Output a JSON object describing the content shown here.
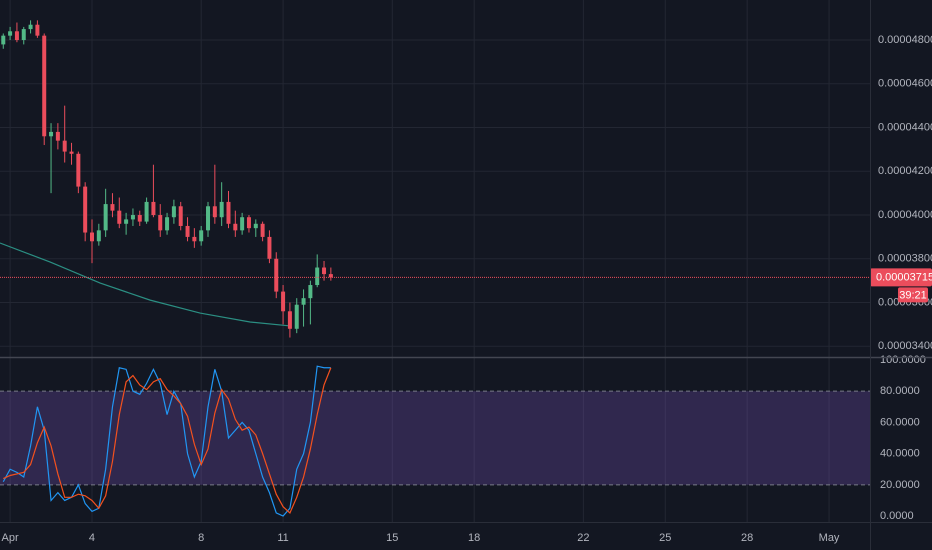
{
  "chart_data": [
    {
      "type": "candlestick",
      "x": [
        0.75,
        1,
        1.25,
        1.5,
        1.75,
        2,
        2.25,
        2.5,
        2.75,
        3,
        3.25,
        3.5,
        3.75,
        4,
        4.25,
        4.5,
        4.75,
        5,
        5.25,
        5.5,
        5.75,
        6,
        6.25,
        6.5,
        6.75,
        7,
        7.25,
        7.5,
        7.75,
        8,
        8.25,
        8.5,
        8.75,
        9,
        9.25,
        9.5,
        9.75,
        10,
        10.25,
        10.5,
        10.75,
        11,
        11.25,
        11.5,
        11.75,
        12,
        12.25,
        12.5,
        12.75
      ],
      "open": [
        4.78e-05,
        4.82e-05,
        4.84e-05,
        4.8e-05,
        4.85e-05,
        4.87e-05,
        4.82e-05,
        4.36e-05,
        4.38e-05,
        4.34e-05,
        4.29e-05,
        4.28e-05,
        4.13e-05,
        3.92e-05,
        3.88e-05,
        3.93e-05,
        4.05e-05,
        4.02e-05,
        3.96e-05,
        3.98e-05,
        4e-05,
        3.97e-05,
        4.06e-05,
        4e-05,
        3.93e-05,
        3.99e-05,
        4.04e-05,
        3.95e-05,
        3.9e-05,
        3.88e-05,
        3.93e-05,
        4.04e-05,
        3.99e-05,
        4.06e-05,
        3.96e-05,
        3.93e-05,
        3.99e-05,
        3.94e-05,
        3.96e-05,
        3.9e-05,
        3.8e-05,
        3.65e-05,
        3.56e-05,
        3.48e-05,
        3.59e-05,
        3.62e-05,
        3.68e-05,
        3.76e-05,
        3.73e-05
      ],
      "high": [
        4.83e-05,
        4.86e-05,
        4.88e-05,
        4.86e-05,
        4.89e-05,
        4.89e-05,
        4.83e-05,
        4.42e-05,
        4.42e-05,
        4.5e-05,
        4.33e-05,
        4.29e-05,
        4.15e-05,
        3.98e-05,
        3.96e-05,
        4.12e-05,
        4.1e-05,
        4.08e-05,
        4.01e-05,
        4.03e-05,
        4.02e-05,
        4.08e-05,
        4.23e-05,
        4.05e-05,
        4.01e-05,
        4.07e-05,
        4.06e-05,
        3.99e-05,
        3.94e-05,
        3.95e-05,
        4.06e-05,
        4.23e-05,
        4.15e-05,
        4.11e-05,
        4.02e-05,
        4.01e-05,
        4e-05,
        3.98e-05,
        3.97e-05,
        3.93e-05,
        3.83e-05,
        3.68e-05,
        3.6e-05,
        3.62e-05,
        3.66e-05,
        3.7e-05,
        3.82e-05,
        3.79e-05,
        3.76e-05
      ],
      "low": [
        4.76e-05,
        4.8e-05,
        4.79e-05,
        4.78e-05,
        4.83e-05,
        4.81e-05,
        4.32e-05,
        4.1e-05,
        4.3e-05,
        4.24e-05,
        4.23e-05,
        4.1e-05,
        3.88e-05,
        3.78e-05,
        3.86e-05,
        3.9e-05,
        3.99e-05,
        3.94e-05,
        3.91e-05,
        3.95e-05,
        3.95e-05,
        3.96e-05,
        3.99e-05,
        3.9e-05,
        3.91e-05,
        3.96e-05,
        3.93e-05,
        3.88e-05,
        3.85e-05,
        3.86e-05,
        3.9e-05,
        3.96e-05,
        3.95e-05,
        3.94e-05,
        3.9e-05,
        3.91e-05,
        3.92e-05,
        3.9e-05,
        3.88e-05,
        3.78e-05,
        3.62e-05,
        3.5e-05,
        3.44e-05,
        3.46e-05,
        3.49e-05,
        3.5e-05,
        3.67e-05,
        3.7e-05,
        3.7e-05
      ],
      "close": [
        4.82e-05,
        4.84e-05,
        4.8e-05,
        4.85e-05,
        4.87e-05,
        4.82e-05,
        4.36e-05,
        4.38e-05,
        4.34e-05,
        4.29e-05,
        4.28e-05,
        4.13e-05,
        3.92e-05,
        3.88e-05,
        3.93e-05,
        4.05e-05,
        4.02e-05,
        3.96e-05,
        3.98e-05,
        4e-05,
        3.97e-05,
        4.06e-05,
        4e-05,
        3.93e-05,
        3.99e-05,
        4.04e-05,
        3.95e-05,
        3.9e-05,
        3.88e-05,
        3.93e-05,
        4.04e-05,
        3.99e-05,
        4.06e-05,
        3.96e-05,
        3.93e-05,
        3.99e-05,
        3.94e-05,
        3.96e-05,
        3.9e-05,
        3.8e-05,
        3.65e-05,
        3.56e-05,
        3.48e-05,
        3.59e-05,
        3.62e-05,
        3.68e-05,
        3.76e-05,
        3.73e-05,
        3.715e-05
      ],
      "up_color": "#53b987",
      "down_color": "#eb4d5c",
      "series": [
        {
          "color": "#2b8f83",
          "x": [
            0.63,
            2.47,
            4.3,
            6.13,
            7.96,
            9.79,
            11.26
          ],
          "values": [
            3.872e-05,
            3.785e-05,
            3.689e-05,
            3.611e-05,
            3.552e-05,
            3.511e-05,
            3.493e-05
          ]
        }
      ],
      "xlim": [
        0.63,
        32.5
      ],
      "xticks": [
        {
          "value": 1,
          "label": "Apr"
        },
        4,
        8,
        11,
        15,
        18,
        22,
        25,
        28,
        {
          "value": 31,
          "label": "May"
        }
      ],
      "ylim": [
        3.351e-05,
        4.983e-05
      ],
      "yticks": [
        {
          "value": 3.4e-05,
          "label": "0.00003400"
        },
        {
          "value": 3.6e-05,
          "label": "0.00003600"
        },
        {
          "value": 3.8e-05,
          "label": "0.00003800"
        },
        {
          "value": 4e-05,
          "label": "0.00004000"
        },
        {
          "value": 4.2e-05,
          "label": "0.00004200"
        },
        {
          "value": 4.4e-05,
          "label": "0.00004400"
        },
        {
          "value": 4.6e-05,
          "label": "0.00004600"
        },
        {
          "value": 4.8e-05,
          "label": "0.00004800"
        }
      ],
      "last_price": {
        "value": 3.715e-05,
        "label": "0.00003715"
      },
      "countdown": "39:21",
      "grid": true
    },
    {
      "type": "line",
      "x": [
        0.75,
        1,
        1.25,
        1.5,
        1.75,
        2,
        2.25,
        2.5,
        2.75,
        3,
        3.25,
        3.5,
        3.75,
        4,
        4.25,
        4.5,
        4.75,
        5,
        5.25,
        5.5,
        5.75,
        6,
        6.25,
        6.5,
        6.75,
        7,
        7.25,
        7.5,
        7.75,
        8,
        8.25,
        8.5,
        8.75,
        9,
        9.25,
        9.5,
        9.75,
        10,
        10.25,
        10.5,
        10.75,
        11,
        11.25,
        11.5,
        11.75,
        12,
        12.25,
        12.5,
        12.75
      ],
      "series": [
        {
          "color": "#2196f3",
          "values": [
            22,
            30,
            28,
            25,
            45,
            70,
            55,
            10,
            15,
            10,
            12,
            20,
            8,
            3,
            5,
            30,
            70,
            95,
            94,
            80,
            78,
            85,
            94,
            85,
            65,
            80,
            72,
            40,
            25,
            35,
            70,
            94,
            80,
            50,
            55,
            60,
            55,
            40,
            25,
            15,
            2,
            0,
            5,
            30,
            40,
            60,
            96,
            95,
            95
          ]
        },
        {
          "color": "#f4511e",
          "values": [
            24,
            26,
            27,
            28,
            33,
            47,
            57,
            45,
            27,
            12,
            12,
            14,
            13,
            10,
            5,
            13,
            35,
            65,
            86,
            90,
            84,
            81,
            86,
            88,
            81,
            77,
            72,
            64,
            46,
            33,
            43,
            66,
            81,
            75,
            62,
            55,
            57,
            52,
            40,
            27,
            14,
            6,
            2,
            12,
            25,
            43,
            65,
            84,
            95
          ]
        }
      ],
      "band": [
        20,
        80
      ],
      "band_color": "#7e57c2",
      "ylim": [
        -3.8,
        101.9
      ],
      "yticks": [
        {
          "value": 0,
          "label": "0.0000"
        },
        {
          "value": 20,
          "label": "20.0000"
        },
        {
          "value": 40,
          "label": "40.0000"
        },
        {
          "value": 60,
          "label": "60.0000"
        },
        {
          "value": 80,
          "label": "80.0000"
        },
        {
          "value": 100,
          "label": "100.0000"
        }
      ]
    }
  ]
}
